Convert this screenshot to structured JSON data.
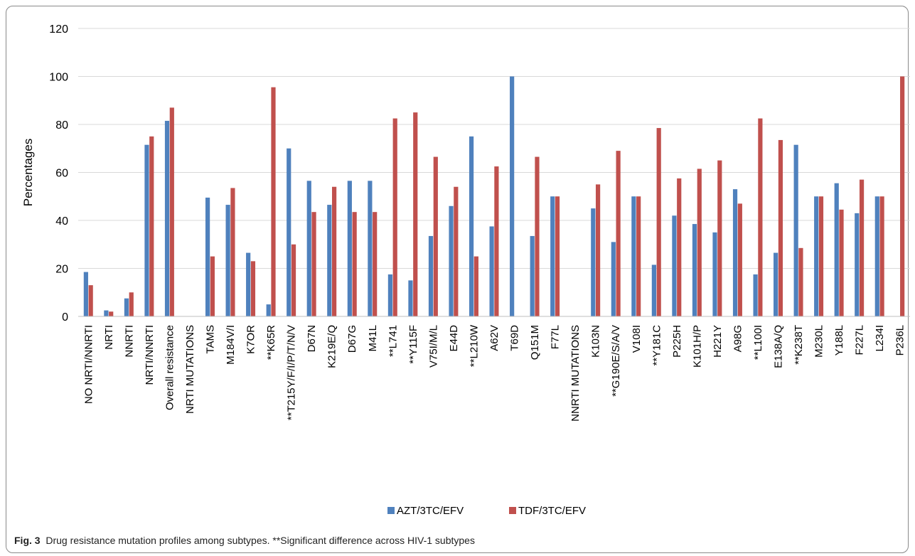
{
  "caption": {
    "label": "Fig. 3",
    "text": "Drug resistance mutation profiles among subtypes. **Significant difference across HIV-1 subtypes"
  },
  "colors": {
    "series1": "#4f81bd",
    "series2": "#c0504d",
    "grid": "#d9d9d9",
    "axis": "#bfbfbf",
    "text": "#000000"
  },
  "chart_data": {
    "type": "bar",
    "title": "",
    "xlabel": "",
    "ylabel": "Percentages",
    "ylim": [
      0,
      120
    ],
    "yticks": [
      0,
      20,
      40,
      60,
      80,
      100,
      120
    ],
    "grid": true,
    "legend_position": "bottom",
    "categories": [
      "NO NRTI/NNRTI",
      "NRTI",
      "NNRTI",
      "NRTI/NNRTI",
      "Overall resistance",
      "NRTI MUTATIONS",
      "TAMS",
      "M184V/I",
      "K7OR",
      "**K65R",
      "**T215Y/F/I/P/T/N/V",
      "D67N",
      "K219E/Q",
      "D67G",
      "M41L",
      "**L741",
      "**Y115F",
      "V75I/M/L",
      "E44D",
      "**L210W",
      "A62V",
      "T69D",
      "Q151M",
      "F77L",
      "NNRTI MUTATIONS",
      "K103N",
      "**G190E/S/A/V",
      "V108I",
      "**Y181C",
      "P225H",
      "K101H/P",
      "H221Y",
      "A98G",
      "**L100I",
      "E138A/Q",
      "**K238T",
      "M230L",
      "Y188L",
      "F227L",
      "L234I",
      "P236L"
    ],
    "series": [
      {
        "name": "AZT/3TC/EFV",
        "values": [
          18.5,
          2.5,
          7.5,
          71.5,
          81.5,
          null,
          49.5,
          46.5,
          26.5,
          5,
          70,
          56.5,
          46.5,
          56.5,
          56.5,
          17.5,
          15,
          33.5,
          46,
          75,
          37.5,
          100,
          33.5,
          50,
          null,
          45,
          31,
          50,
          21.5,
          42,
          38.5,
          35,
          53,
          17.5,
          26.5,
          71.5,
          50,
          55.5,
          43,
          50,
          0
        ]
      },
      {
        "name": "TDF/3TC/EFV",
        "values": [
          13,
          2,
          10,
          75,
          87,
          null,
          25,
          53.5,
          23,
          95.5,
          30,
          43.5,
          54,
          43.5,
          43.5,
          82.5,
          85,
          66.5,
          54,
          25,
          62.5,
          0,
          66.5,
          50,
          null,
          55,
          69,
          50,
          78.5,
          57.5,
          61.5,
          65,
          47,
          82.5,
          73.5,
          28.5,
          50,
          44.5,
          57,
          50,
          100
        ]
      }
    ]
  }
}
